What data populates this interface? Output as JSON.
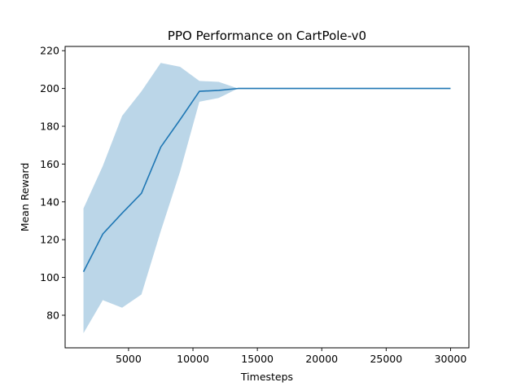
{
  "chart_data": {
    "type": "line",
    "title": "PPO Performance on CartPole-v0",
    "xlabel": "Timesteps",
    "ylabel": "Mean Reward",
    "xlim": [
      1500,
      30000
    ],
    "ylim": [
      70,
      215
    ],
    "xticks": [
      5000,
      10000,
      15000,
      20000,
      25000,
      30000
    ],
    "yticks": [
      80,
      100,
      120,
      140,
      160,
      180,
      200,
      220
    ],
    "grid": false,
    "legend": "none",
    "series": [
      {
        "x": [
          1500,
          3000,
          4500,
          6000,
          7500,
          9000,
          10500,
          12000,
          13500,
          15000,
          16500,
          18000,
          19500,
          21000,
          22500,
          24000,
          25500,
          27000,
          28500,
          30000
        ],
        "values": [
          103,
          123,
          134,
          144.5,
          169,
          183.5,
          198.5,
          199,
          200,
          200,
          200,
          200,
          200,
          200,
          200,
          200,
          200,
          200,
          200,
          200
        ],
        "upper": [
          136.5,
          159,
          185.5,
          198.5,
          213.5,
          211.5,
          204,
          203.5,
          200,
          200,
          200,
          200,
          200,
          200,
          200,
          200,
          200,
          200,
          200,
          200
        ],
        "lower": [
          70.5,
          88,
          84,
          91,
          124.5,
          156,
          193,
          195,
          200,
          200,
          200,
          200,
          200,
          200,
          200,
          200,
          200,
          200,
          200,
          200
        ],
        "color": "#1f77b4",
        "band_color": "#1f77b4",
        "band_opacity": 0.3
      }
    ]
  }
}
